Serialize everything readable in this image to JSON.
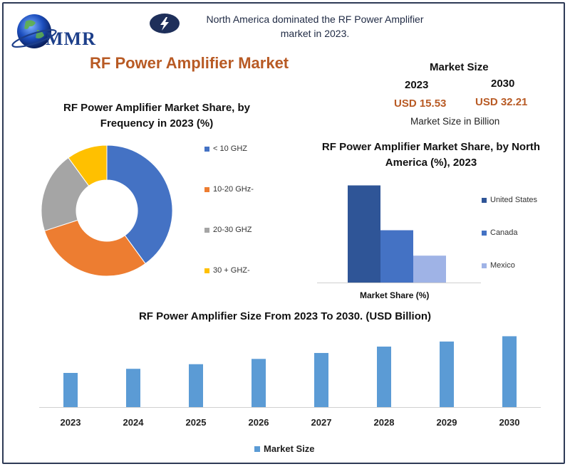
{
  "logo": {
    "text": "MMR"
  },
  "headline": "North America dominated the RF Power Amplifier market in 2023.",
  "main_title": "RF Power Amplifier Market",
  "market_size": {
    "title": "Market Size",
    "year_a": "2023",
    "year_b": "2030",
    "value_a": "USD 15.53",
    "value_b": "USD 32.21",
    "note": "Market Size in Billion"
  },
  "colors": {
    "frame": "#2e3a56",
    "accent": "#b85a24",
    "blue": "#4472c4",
    "orange": "#ed7d31",
    "gray": "#a5a5a5",
    "yellow": "#ffc000",
    "bar_blue": "#5b9bd5",
    "us_blue": "#2f5597",
    "ca_blue": "#4472c4",
    "mx_blue": "#9fb3e6"
  },
  "chart_data": [
    {
      "type": "pie",
      "donut": true,
      "title": "RF Power Amplifier Market Share, by Frequency in 2023 (%)",
      "categories": [
        "< 10 GHZ",
        "10-20 GHz-",
        "20-30 GHZ",
        "30 + GHZ-"
      ],
      "values": [
        40,
        30,
        20,
        10
      ],
      "colors": [
        "#4472c4",
        "#ed7d31",
        "#a5a5a5",
        "#ffc000"
      ],
      "legend": "right"
    },
    {
      "type": "bar",
      "title": "RF Power Amplifier  Market Share, by North America (%), 2023",
      "xlabel": "Market Share (%)",
      "series": [
        {
          "name": "United States",
          "values": [
            65
          ],
          "color": "#2f5597"
        },
        {
          "name": "Canada",
          "values": [
            35
          ],
          "color": "#4472c4"
        },
        {
          "name": "Mexico",
          "values": [
            18
          ],
          "color": "#9fb3e6"
        }
      ],
      "ylim": [
        0,
        70
      ],
      "legend": "right"
    },
    {
      "type": "bar",
      "title": "RF Power Amplifier Size From 2023 To 2030. (USD Billion)",
      "categories": [
        "2023",
        "2024",
        "2025",
        "2026",
        "2027",
        "2028",
        "2029",
        "2030"
      ],
      "series": [
        {
          "name": "Market  Size",
          "values": [
            15.53,
            17.4,
            19.5,
            21.9,
            24.6,
            27.5,
            29.8,
            32.21
          ],
          "color": "#5b9bd5"
        }
      ],
      "ylim": [
        0,
        33
      ],
      "legend": "bottom"
    }
  ]
}
